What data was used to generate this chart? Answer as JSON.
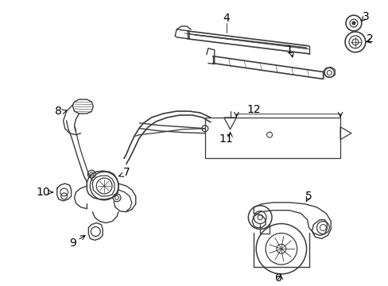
{
  "bg_color": "#ffffff",
  "fig_width": 4.89,
  "fig_height": 3.6,
  "dpi": 100,
  "lc": "#3a3a3a",
  "lw": 1.0
}
